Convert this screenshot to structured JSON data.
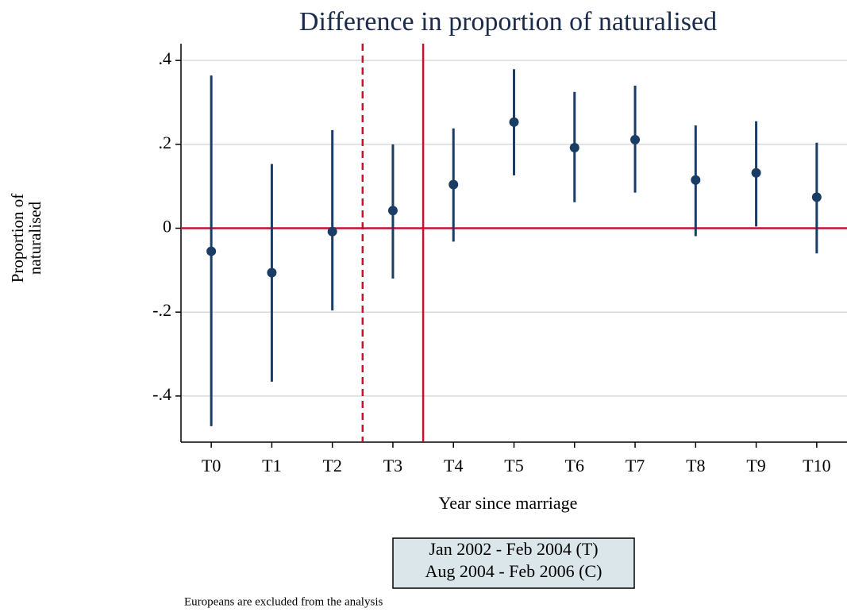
{
  "chart_data": {
    "type": "errorbar",
    "title": "Difference in proportion of naturalised",
    "xlabel": "Year since marriage",
    "ylabel": [
      "Proportion of",
      "naturalised"
    ],
    "categories": [
      "T0",
      "T1",
      "T2",
      "T3",
      "T4",
      "T5",
      "T6",
      "T7",
      "T8",
      "T9",
      "T10"
    ],
    "series": [
      {
        "color": "#1a3d66",
        "values": [
          -0.055,
          -0.106,
          -0.008,
          0.042,
          0.104,
          0.253,
          0.192,
          0.211,
          0.115,
          0.132,
          0.074
        ],
        "lower": [
          -0.472,
          -0.366,
          -0.196,
          -0.12,
          -0.032,
          0.126,
          0.062,
          0.085,
          -0.019,
          0.004,
          -0.06
        ],
        "upper": [
          0.364,
          0.153,
          0.234,
          0.2,
          0.238,
          0.379,
          0.325,
          0.34,
          0.245,
          0.255,
          0.204
        ]
      }
    ],
    "ylim": [
      -0.51,
      0.44
    ],
    "yticks": [
      {
        "value": -0.4,
        "label": "-.4"
      },
      {
        "value": -0.2,
        "label": "-.2"
      },
      0,
      {
        "value": 0.2,
        "label": ".2"
      },
      {
        "value": 0.4,
        "label": ".4"
      }
    ],
    "grid": true,
    "hline": {
      "value": 0,
      "color": "#c8102e"
    },
    "vlines": [
      {
        "position": 2.5,
        "style": "dashed",
        "color": "#c8102e"
      },
      {
        "position": 3.5,
        "style": "solid",
        "color": "#c8102e"
      }
    ],
    "legend": [
      "Jan 2002 - Feb 2004 (T)",
      "Aug 2004 - Feb 2006 (C)"
    ],
    "note": "Europeans are excluded from the analysis"
  }
}
